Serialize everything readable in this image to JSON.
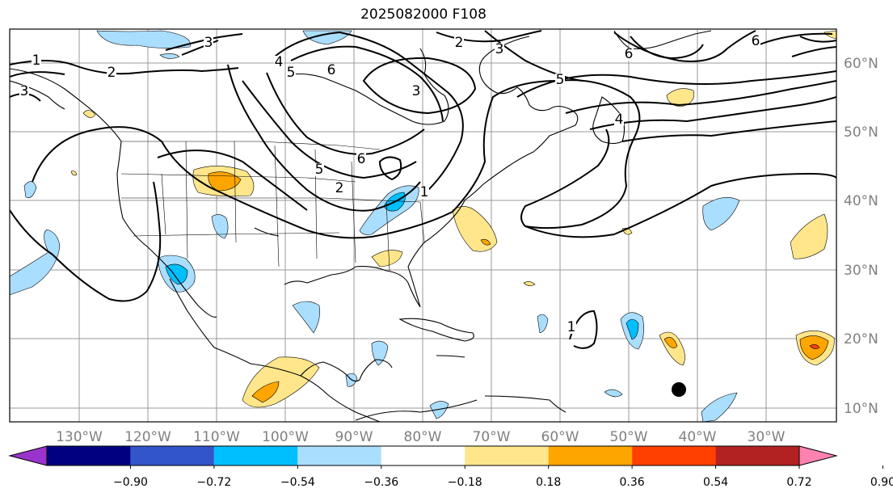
{
  "title": "2025082000 F108",
  "axes": {
    "lon_labels": [
      "130°W",
      "120°W",
      "110°W",
      "100°W",
      "90°W",
      "80°W",
      "70°W",
      "60°W",
      "50°W",
      "40°W",
      "30°W"
    ],
    "lat_labels": [
      "60°N",
      "50°N",
      "40°N",
      "30°N",
      "20°N",
      "10°N"
    ],
    "label_color": "#808080"
  },
  "contour_labels": [
    "1",
    "2",
    "3",
    "3",
    "4",
    "5",
    "6",
    "2",
    "3",
    "5",
    "6",
    "3",
    "6",
    "4",
    "5",
    "6",
    "2",
    "1",
    "1"
  ],
  "marker": {
    "name": "black-dot",
    "lon": "43°W",
    "lat": "12.5°N"
  },
  "colorbar": {
    "ticks": [
      "−0.90",
      "−0.72",
      "−0.54",
      "−0.36",
      "−0.18",
      "0.18",
      "0.36",
      "0.54",
      "0.72",
      "0.90"
    ],
    "colors": [
      "#9933cc",
      "#000080",
      "#3355cc",
      "#00bfff",
      "#aadeff",
      "#ffffff",
      "#ffe68a",
      "#ffa500",
      "#ff4000",
      "#b22222",
      "#ff82b0"
    ]
  }
}
